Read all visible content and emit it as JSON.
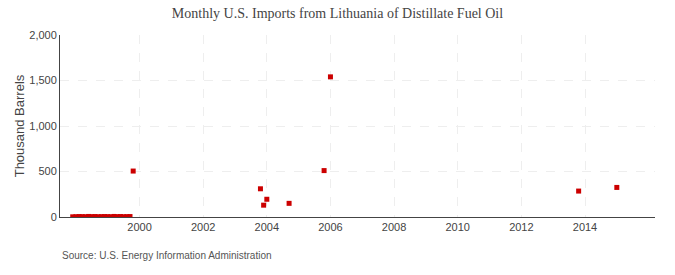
{
  "chart_data": {
    "type": "scatter",
    "title": "Monthly U.S. Imports from Lithuania of Distillate Fuel Oil",
    "ylabel": "Thousand Barrels",
    "source": "Source: U.S. Energy Information Administration",
    "color": "#cc0000",
    "marker": "square",
    "grid": true,
    "x": [
      1997.9,
      1998.0,
      1998.1,
      1998.2,
      1998.3,
      1998.4,
      1998.5,
      1998.6,
      1998.7,
      1998.8,
      1998.9,
      1999.0,
      1999.1,
      1999.2,
      1999.3,
      1999.4,
      1999.5,
      1999.6,
      1999.7,
      1999.8,
      2003.8,
      2003.9,
      2004.0,
      2004.7,
      2005.8,
      2006.0,
      2013.8,
      2015.0
    ],
    "values": [
      2,
      3,
      5,
      4,
      3,
      6,
      4,
      5,
      3,
      4,
      5,
      4,
      3,
      6,
      4,
      5,
      3,
      4,
      5,
      505,
      310,
      130,
      195,
      150,
      510,
      1540,
      285,
      325
    ],
    "xlim": [
      1997.5,
      2016.2
    ],
    "ylim": [
      0,
      2000
    ],
    "xticks": [
      2000,
      2002,
      2004,
      2006,
      2008,
      2010,
      2012,
      2014
    ],
    "yticks": [
      0,
      500,
      {
        "value": 1000,
        "label": "1,000"
      },
      {
        "value": 1500,
        "label": "1,500"
      },
      {
        "value": 2000,
        "label": "2,000"
      }
    ]
  }
}
